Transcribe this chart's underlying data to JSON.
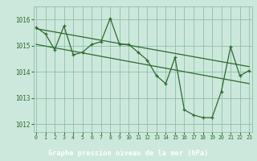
{
  "main_line": {
    "x": [
      0,
      1,
      2,
      3,
      4,
      5,
      6,
      7,
      8,
      9,
      10,
      11,
      12,
      13,
      14,
      15,
      16,
      17,
      18,
      19,
      20,
      21,
      22,
      23
    ],
    "y": [
      1015.7,
      1015.45,
      1014.85,
      1015.75,
      1014.65,
      1014.75,
      1015.05,
      1015.15,
      1016.05,
      1015.05,
      1015.05,
      1014.75,
      1014.45,
      1013.85,
      1013.55,
      1014.55,
      1012.55,
      1012.35,
      1012.25,
      1012.25,
      1013.25,
      1014.95,
      1013.85,
      1014.05
    ]
  },
  "trend_line1": {
    "x": [
      0,
      23
    ],
    "y": [
      1015.65,
      1014.2
    ]
  },
  "trend_line2": {
    "x": [
      0,
      23
    ],
    "y": [
      1015.05,
      1013.55
    ]
  },
  "line_color": "#2d6a2d",
  "bg_color": "#cce8dc",
  "grid_color": "#8fbfa8",
  "bar_color": "#2d6a2d",
  "label_text": "Graphe pression niveau de la mer (hPa)",
  "label_text_color": "#ffffff",
  "tick_color": "#2d6a2d",
  "ylim": [
    1011.7,
    1016.5
  ],
  "xlim": [
    -0.3,
    23.3
  ],
  "yticks": [
    1012,
    1013,
    1014,
    1015,
    1016
  ],
  "xticks": [
    0,
    1,
    2,
    3,
    4,
    5,
    6,
    7,
    8,
    9,
    10,
    11,
    12,
    13,
    14,
    15,
    16,
    17,
    18,
    19,
    20,
    21,
    22,
    23
  ]
}
